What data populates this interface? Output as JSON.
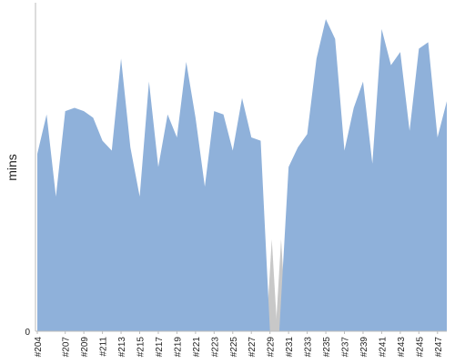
{
  "chart_data": {
    "type": "area",
    "ylabel": "mins",
    "xlabel": "",
    "title": "",
    "ylim": [
      0,
      100
    ],
    "y_ticks": [
      {
        "value": 0,
        "label": "0"
      }
    ],
    "x_labels": [
      {
        "x": 204,
        "label": "#204"
      },
      {
        "x": 207,
        "label": "#207"
      },
      {
        "x": 209,
        "label": "#209"
      },
      {
        "x": 211,
        "label": "#211"
      },
      {
        "x": 213,
        "label": "#213"
      },
      {
        "x": 215,
        "label": "#215"
      },
      {
        "x": 217,
        "label": "#217"
      },
      {
        "x": 219,
        "label": "#219"
      },
      {
        "x": 221,
        "label": "#221"
      },
      {
        "x": 223,
        "label": "#223"
      },
      {
        "x": 225,
        "label": "#225"
      },
      {
        "x": 227,
        "label": "#227"
      },
      {
        "x": 229,
        "label": "#229"
      },
      {
        "x": 231,
        "label": "#231"
      },
      {
        "x": 233,
        "label": "#233"
      },
      {
        "x": 235,
        "label": "#235"
      },
      {
        "x": 237,
        "label": "#237"
      },
      {
        "x": 239,
        "label": "#239"
      },
      {
        "x": 241,
        "label": "#241"
      },
      {
        "x": 243,
        "label": "#243"
      },
      {
        "x": 245,
        "label": "#245"
      },
      {
        "x": 247,
        "label": "#247"
      }
    ],
    "x_range": [
      204,
      248
    ],
    "series": [
      {
        "name": "",
        "color": "#8fb1da",
        "values": [
          [
            204,
            54
          ],
          [
            205,
            66
          ],
          [
            206,
            41
          ],
          [
            207,
            67
          ],
          [
            208,
            68
          ],
          [
            209,
            67
          ],
          [
            210,
            65
          ],
          [
            211,
            58
          ],
          [
            212,
            55
          ],
          [
            213,
            83
          ],
          [
            214,
            56
          ],
          [
            215,
            41
          ],
          [
            216,
            76
          ],
          [
            217,
            50
          ],
          [
            218,
            66
          ],
          [
            219,
            59
          ],
          [
            220,
            82
          ],
          [
            221,
            65
          ],
          [
            222,
            44
          ],
          [
            223,
            67
          ],
          [
            224,
            66
          ],
          [
            225,
            55
          ],
          [
            226,
            71
          ],
          [
            227,
            59
          ],
          [
            228,
            58
          ],
          [
            229,
            0
          ],
          [
            230,
            0
          ],
          [
            231,
            50
          ],
          [
            232,
            56
          ],
          [
            233,
            60
          ],
          [
            234,
            83
          ],
          [
            235,
            95
          ],
          [
            236,
            89
          ],
          [
            237,
            55
          ],
          [
            238,
            68
          ],
          [
            239,
            76
          ],
          [
            240,
            51
          ],
          [
            241,
            92
          ],
          [
            242,
            81
          ],
          [
            243,
            85
          ],
          [
            244,
            61
          ],
          [
            245,
            86
          ],
          [
            246,
            88
          ],
          [
            247,
            59
          ],
          [
            248,
            70
          ]
        ]
      }
    ],
    "gap_color": "#c8c8c8",
    "grid": false
  }
}
